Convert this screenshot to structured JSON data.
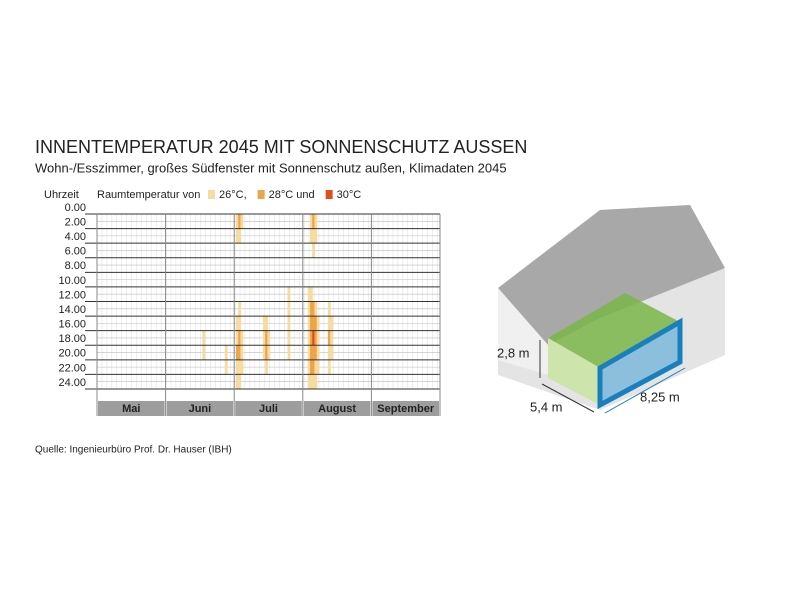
{
  "chart_data": {
    "type": "heatmap",
    "title": "INNENTEMPERATUR 2045 MIT SONNENSCHUTZ AUSSEN",
    "subtitle": "Wohn-/Esszimmer, großes Südfenster mit Sonnenschutz außen, Klimadaten 2045",
    "y_label": "Uhrzeit",
    "legend_title": "Raumtemperatur von",
    "levels": [
      {
        "value": 26,
        "label": "26°C,",
        "color": "#f7dba0"
      },
      {
        "value": 28,
        "label": "28°C und",
        "color": "#eda54a"
      },
      {
        "value": 30,
        "label": "30°C",
        "color": "#de4f1c"
      }
    ],
    "categories": [
      "Mai",
      "Juni",
      "Juli",
      "August",
      "September"
    ],
    "xlim": [
      0,
      153
    ],
    "ylim": [
      0,
      24
    ],
    "yticks": [
      {
        "value": 0,
        "label": "0.00"
      },
      {
        "value": 2,
        "label": "2.00"
      },
      {
        "value": 4,
        "label": "4.00"
      },
      {
        "value": 6,
        "label": "6.00"
      },
      {
        "value": 8,
        "label": "8.00"
      },
      {
        "value": 10,
        "label": "10.00"
      },
      {
        "value": 12,
        "label": "12.00"
      },
      {
        "value": 14,
        "label": "14.00"
      },
      {
        "value": 16,
        "label": "16.00"
      },
      {
        "value": 18,
        "label": "18.00"
      },
      {
        "value": 20,
        "label": "20.00"
      },
      {
        "value": 22,
        "label": "22.00"
      },
      {
        "value": 24,
        "label": "24.00"
      }
    ],
    "cells": [
      [
        47,
        16,
        26
      ],
      [
        47,
        18,
        26
      ],
      [
        57,
        18,
        26
      ],
      [
        57,
        20,
        26
      ],
      [
        62,
        0,
        26
      ],
      [
        62,
        2,
        26
      ],
      [
        62,
        14,
        26
      ],
      [
        62,
        16,
        26
      ],
      [
        62,
        18,
        28
      ],
      [
        62,
        20,
        26
      ],
      [
        62,
        22,
        26
      ],
      [
        63,
        0,
        28
      ],
      [
        63,
        2,
        26
      ],
      [
        63,
        12,
        26
      ],
      [
        63,
        14,
        26
      ],
      [
        63,
        16,
        28
      ],
      [
        63,
        18,
        28
      ],
      [
        63,
        20,
        26
      ],
      [
        63,
        22,
        26
      ],
      [
        64,
        0,
        26
      ],
      [
        64,
        16,
        26
      ],
      [
        64,
        18,
        26
      ],
      [
        64,
        20,
        26
      ],
      [
        74,
        14,
        26
      ],
      [
        74,
        16,
        26
      ],
      [
        74,
        18,
        26
      ],
      [
        75,
        14,
        26
      ],
      [
        75,
        16,
        28
      ],
      [
        75,
        18,
        28
      ],
      [
        75,
        20,
        26
      ],
      [
        76,
        16,
        26
      ],
      [
        76,
        18,
        26
      ],
      [
        85,
        10,
        26
      ],
      [
        85,
        12,
        26
      ],
      [
        85,
        14,
        26
      ],
      [
        85,
        16,
        26
      ],
      [
        85,
        18,
        26
      ],
      [
        94,
        10,
        26
      ],
      [
        94,
        12,
        26
      ],
      [
        94,
        14,
        26
      ],
      [
        94,
        16,
        26
      ],
      [
        94,
        18,
        26
      ],
      [
        94,
        20,
        26
      ],
      [
        94,
        22,
        26
      ],
      [
        95,
        0,
        26
      ],
      [
        95,
        2,
        26
      ],
      [
        95,
        10,
        26
      ],
      [
        95,
        12,
        28
      ],
      [
        95,
        14,
        28
      ],
      [
        95,
        16,
        28
      ],
      [
        95,
        18,
        28
      ],
      [
        95,
        20,
        28
      ],
      [
        95,
        22,
        26
      ],
      [
        96,
        0,
        28
      ],
      [
        96,
        2,
        26
      ],
      [
        96,
        4,
        26
      ],
      [
        96,
        12,
        28
      ],
      [
        96,
        14,
        28
      ],
      [
        96,
        16,
        30
      ],
      [
        96,
        18,
        28
      ],
      [
        96,
        20,
        28
      ],
      [
        96,
        22,
        26
      ],
      [
        97,
        0,
        26
      ],
      [
        97,
        2,
        26
      ],
      [
        97,
        12,
        26
      ],
      [
        97,
        14,
        28
      ],
      [
        97,
        16,
        28
      ],
      [
        97,
        18,
        28
      ],
      [
        97,
        20,
        26
      ],
      [
        97,
        22,
        26
      ],
      [
        98,
        14,
        26
      ],
      [
        98,
        16,
        26
      ],
      [
        98,
        18,
        26
      ],
      [
        98,
        20,
        26
      ],
      [
        103,
        12,
        26
      ],
      [
        103,
        14,
        26
      ],
      [
        103,
        16,
        28
      ],
      [
        103,
        18,
        26
      ],
      [
        103,
        20,
        26
      ],
      [
        104,
        14,
        26
      ],
      [
        104,
        16,
        26
      ],
      [
        104,
        18,
        26
      ]
    ],
    "source": "Quelle: Ingenieurbüro Prof. Dr. Hauser (IBH)"
  },
  "diagram": {
    "height": "2,8 m",
    "depth": "5,4 m",
    "width": "8,25 m"
  }
}
